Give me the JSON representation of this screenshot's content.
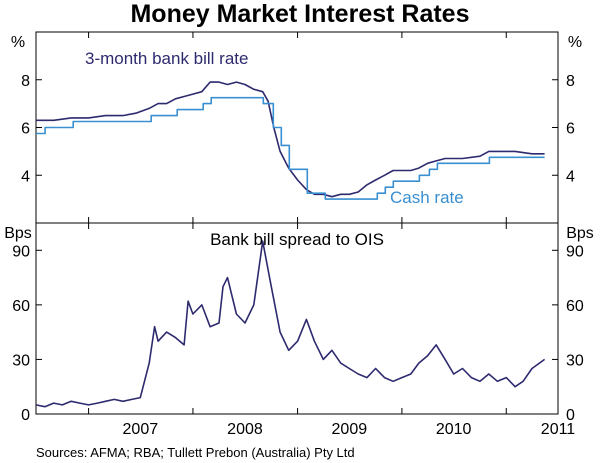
{
  "title": "Money Market Interest Rates",
  "source": "Sources: AFMA; RBA; Tullett Prebon (Australia) Pty Ltd",
  "colors": {
    "bill": "#2d2a6e",
    "cash": "#3a8fd0"
  },
  "chart_data": [
    {
      "type": "line",
      "unit_left": "%",
      "unit_right": "%",
      "ylim": [
        2,
        10
      ],
      "yticks": [
        "4",
        "6",
        "8"
      ],
      "ytick_values": [
        4,
        6,
        8
      ],
      "xticks": [
        "2007",
        "2008",
        "2009",
        "2010",
        "2011"
      ],
      "xlim": [
        "2006-07-01",
        "2011-07-01"
      ],
      "grid": false,
      "series": [
        {
          "name": "3-month bank bill rate",
          "x": [
            "2006-07-01",
            "2006-09-01",
            "2006-11-01",
            "2007-01-01",
            "2007-03-01",
            "2007-05-01",
            "2007-06-15",
            "2007-08-01",
            "2007-09-01",
            "2007-10-01",
            "2007-11-01",
            "2007-12-01",
            "2008-01-01",
            "2008-02-01",
            "2008-03-01",
            "2008-04-01",
            "2008-05-01",
            "2008-06-01",
            "2008-07-01",
            "2008-08-01",
            "2008-09-01",
            "2008-09-20",
            "2008-10-10",
            "2008-11-01",
            "2008-12-01",
            "2009-01-01",
            "2009-02-01",
            "2009-03-01",
            "2009-04-01",
            "2009-05-01",
            "2009-06-01",
            "2009-07-01",
            "2009-08-01",
            "2009-09-01",
            "2009-10-01",
            "2009-11-01",
            "2009-12-01",
            "2010-01-01",
            "2010-02-01",
            "2010-03-01",
            "2010-04-01",
            "2010-05-01",
            "2010-06-01",
            "2010-08-01",
            "2010-10-01",
            "2010-11-01",
            "2010-12-01",
            "2011-02-01",
            "2011-04-01",
            "2011-05-15"
          ],
          "y": [
            6.3,
            6.3,
            6.4,
            6.4,
            6.5,
            6.5,
            6.6,
            6.8,
            7.0,
            7.0,
            7.2,
            7.3,
            7.4,
            7.5,
            7.9,
            7.9,
            7.8,
            7.9,
            7.8,
            7.6,
            7.5,
            7.1,
            6.0,
            5.0,
            4.3,
            3.8,
            3.4,
            3.2,
            3.2,
            3.1,
            3.2,
            3.2,
            3.3,
            3.6,
            3.8,
            4.0,
            4.2,
            4.2,
            4.2,
            4.3,
            4.5,
            4.6,
            4.7,
            4.7,
            4.8,
            5.0,
            5.0,
            5.0,
            4.9,
            4.9
          ]
        },
        {
          "name": "Cash rate",
          "x": [
            "2006-07-01",
            "2006-08-02",
            "2006-11-08",
            "2007-08-08",
            "2007-11-07",
            "2008-02-06",
            "2008-03-05",
            "2008-09-03",
            "2008-10-08",
            "2008-11-05",
            "2008-12-03",
            "2009-02-04",
            "2009-04-08",
            "2009-10-07",
            "2009-11-04",
            "2009-12-02",
            "2010-03-03",
            "2010-04-07",
            "2010-05-05",
            "2010-11-03",
            "2011-05-15"
          ],
          "y": [
            5.75,
            6.0,
            6.25,
            6.5,
            6.75,
            7.0,
            7.25,
            7.0,
            6.0,
            5.25,
            4.25,
            3.25,
            3.0,
            3.25,
            3.5,
            3.75,
            4.0,
            4.25,
            4.5,
            4.75,
            4.75
          ]
        }
      ]
    },
    {
      "type": "line",
      "title": "Bank bill spread to OIS",
      "unit_left": "Bps",
      "unit_right": "Bps",
      "ylim": [
        0,
        105
      ],
      "yticks": [
        "0",
        "30",
        "60",
        "90"
      ],
      "ytick_values": [
        0,
        30,
        60,
        90
      ],
      "xticks": [
        "2007",
        "2008",
        "2009",
        "2010",
        "2011"
      ],
      "xlim": [
        "2006-07-01",
        "2011-07-01"
      ],
      "grid": false,
      "series": [
        {
          "x": [
            "2006-07-01",
            "2006-08-01",
            "2006-09-01",
            "2006-10-01",
            "2006-11-01",
            "2006-12-01",
            "2007-01-01",
            "2007-02-01",
            "2007-03-01",
            "2007-04-01",
            "2007-05-01",
            "2007-06-01",
            "2007-07-01",
            "2007-08-01",
            "2007-08-20",
            "2007-09-01",
            "2007-10-01",
            "2007-11-01",
            "2007-12-01",
            "2007-12-15",
            "2008-01-01",
            "2008-02-01",
            "2008-03-01",
            "2008-04-01",
            "2008-04-15",
            "2008-05-01",
            "2008-06-01",
            "2008-07-01",
            "2008-08-01",
            "2008-09-01",
            "2008-10-01",
            "2008-11-01",
            "2008-12-01",
            "2009-01-01",
            "2009-02-01",
            "2009-03-01",
            "2009-04-01",
            "2009-05-01",
            "2009-06-01",
            "2009-07-01",
            "2009-08-01",
            "2009-09-01",
            "2009-10-01",
            "2009-11-01",
            "2009-12-01",
            "2010-01-01",
            "2010-02-01",
            "2010-03-01",
            "2010-04-01",
            "2010-05-01",
            "2010-06-01",
            "2010-07-01",
            "2010-08-01",
            "2010-09-01",
            "2010-10-01",
            "2010-11-01",
            "2010-12-01",
            "2011-01-01",
            "2011-02-01",
            "2011-03-01",
            "2011-04-01",
            "2011-05-15"
          ],
          "y": [
            5,
            4,
            6,
            5,
            7,
            6,
            5,
            6,
            7,
            8,
            7,
            8,
            9,
            28,
            48,
            40,
            45,
            42,
            38,
            62,
            55,
            60,
            48,
            50,
            70,
            75,
            55,
            50,
            60,
            95,
            70,
            45,
            35,
            40,
            52,
            40,
            30,
            35,
            28,
            25,
            22,
            20,
            25,
            20,
            18,
            20,
            22,
            28,
            32,
            38,
            30,
            22,
            25,
            20,
            18,
            22,
            18,
            20,
            15,
            18,
            25,
            30
          ]
        }
      ]
    }
  ]
}
